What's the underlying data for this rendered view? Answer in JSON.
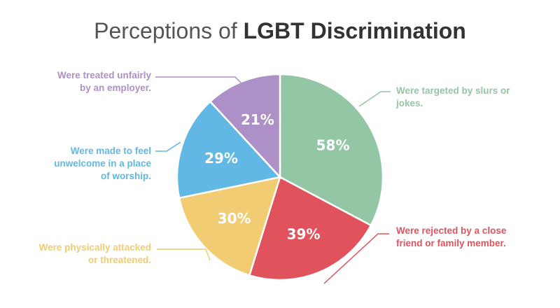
{
  "chart_data": {
    "type": "pie",
    "title_prefix": "Perceptions of ",
    "title_emphasis": "LGBT Discrimination",
    "slices": [
      {
        "value": 58,
        "display": "58%",
        "label_lines": [
          "Were targeted by slurs or",
          "jokes."
        ],
        "color": "#93c6a5"
      },
      {
        "value": 39,
        "display": "39%",
        "label_lines": [
          "Were rejected by a close",
          "friend or family member."
        ],
        "color": "#e0535c"
      },
      {
        "value": 30,
        "display": "30%",
        "label_lines": [
          "Were physically attacked",
          "or threatened."
        ],
        "color": "#f1cc72"
      },
      {
        "value": 29,
        "display": "29%",
        "label_lines": [
          "Were made to feel",
          "unwelcome in a place",
          "of worship."
        ],
        "color": "#62b8e4"
      },
      {
        "value": 21,
        "display": "21%",
        "label_lines": [
          "Were treated unfairly",
          "by an employer."
        ],
        "color": "#ad90c7"
      }
    ],
    "legend": "none",
    "slice_border": "#ffffff"
  }
}
